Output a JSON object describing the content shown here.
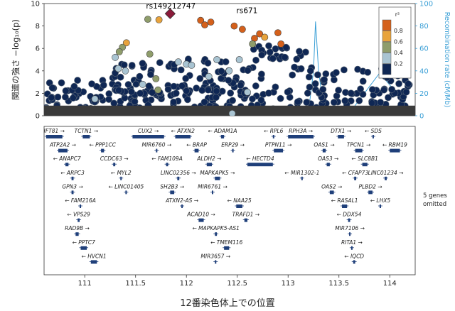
{
  "chart_data": {
    "type": "scatter",
    "ylabel": "関連の強さ −log₁₀(p)",
    "y2label": "Recombination rate (cM/Mb)",
    "xlabel": "12番染色体上での位置",
    "xlim": [
      110.6,
      114.25
    ],
    "ylim": [
      0,
      10
    ],
    "y2lim": [
      0,
      100
    ],
    "xticks": [
      111,
      111.5,
      112,
      112.5,
      113,
      113.5,
      114
    ],
    "yticks": [
      0,
      2,
      4,
      6,
      8,
      10
    ],
    "y2ticks": [
      0,
      20,
      40,
      60,
      80,
      100
    ],
    "lead_snp": {
      "label": "rs149212747",
      "x": 111.84,
      "y": 9.1
    },
    "annotated_snps": [
      {
        "label": "rs671",
        "x": 112.24,
        "y": 8.5
      }
    ],
    "legend": {
      "title": "r²",
      "position": "top-right",
      "bins": [
        {
          "label": "0.8",
          "color": "#d4601b"
        },
        {
          "label": "0.6",
          "color": "#e8a33c"
        },
        {
          "label": "0.4",
          "color": "#8f9d6b"
        },
        {
          "label": "0.2",
          "color": "#a9c4d2"
        },
        {
          "label": "",
          "color": "#0f2754"
        }
      ]
    },
    "highlighted_points": [
      {
        "x": 111.84,
        "y": 9.1,
        "r2": "lead"
      },
      {
        "x": 111.62,
        "y": 8.6,
        "r2": 0.5
      },
      {
        "x": 111.73,
        "y": 8.55,
        "r2": 0.7
      },
      {
        "x": 112.14,
        "y": 8.5,
        "r2": 0.9
      },
      {
        "x": 112.18,
        "y": 8.1,
        "r2": 0.9
      },
      {
        "x": 112.24,
        "y": 8.35,
        "r2": 0.9
      },
      {
        "x": 112.47,
        "y": 8.0,
        "r2": 0.9
      },
      {
        "x": 112.55,
        "y": 7.7,
        "r2": 0.9
      },
      {
        "x": 112.72,
        "y": 7.3,
        "r2": 0.9
      },
      {
        "x": 112.67,
        "y": 6.9,
        "r2": 0.9
      },
      {
        "x": 112.77,
        "y": 7.0,
        "r2": 0.7
      },
      {
        "x": 112.9,
        "y": 7.4,
        "r2": 0.9
      },
      {
        "x": 112.93,
        "y": 6.4,
        "r2": 0.9
      },
      {
        "x": 112.65,
        "y": 6.4,
        "r2": 0.5
      },
      {
        "x": 111.41,
        "y": 6.5,
        "r2": 0.7
      },
      {
        "x": 111.37,
        "y": 6.1,
        "r2": 0.5
      },
      {
        "x": 111.34,
        "y": 5.7,
        "r2": 0.5
      },
      {
        "x": 111.3,
        "y": 5.2,
        "r2": 0.3
      },
      {
        "x": 111.33,
        "y": 4.2,
        "r2": 0.3
      },
      {
        "x": 111.64,
        "y": 5.5,
        "r2": 0.5
      },
      {
        "x": 111.7,
        "y": 3.3,
        "r2": 0.5
      },
      {
        "x": 111.72,
        "y": 2.3,
        "r2": 0.5
      },
      {
        "x": 111.92,
        "y": 4.8,
        "r2": 0.3
      },
      {
        "x": 112.0,
        "y": 4.6,
        "r2": 0.3
      },
      {
        "x": 112.05,
        "y": 4.5,
        "r2": 0.3
      },
      {
        "x": 112.22,
        "y": 3.5,
        "r2": 0.3
      },
      {
        "x": 112.3,
        "y": 5.0,
        "r2": 0.3
      },
      {
        "x": 112.42,
        "y": 4.0,
        "r2": 0.3
      },
      {
        "x": 112.52,
        "y": 5.0,
        "r2": 0.3
      },
      {
        "x": 112.45,
        "y": 0.2,
        "r2": 0.3
      },
      {
        "x": 111.4,
        "y": 4.0,
        "r2": 0.3
      },
      {
        "x": 111.57,
        "y": 2.8,
        "r2": 0.3
      },
      {
        "x": 111.1,
        "y": 1.5,
        "r2": 0.3
      },
      {
        "x": 112.6,
        "y": 2.1,
        "r2": 0.3
      }
    ],
    "background_clusters": [
      {
        "x0": 110.62,
        "x1": 114.25,
        "ylo": 0.0,
        "yhi": 2.0,
        "n": 260
      },
      {
        "x0": 110.62,
        "x1": 111.4,
        "ylo": 1.5,
        "yhi": 3.5,
        "n": 30
      },
      {
        "x0": 111.25,
        "x1": 111.75,
        "ylo": 2.0,
        "yhi": 4.8,
        "n": 40
      },
      {
        "x0": 111.8,
        "x1": 112.6,
        "ylo": 2.0,
        "yhi": 5.1,
        "n": 60
      },
      {
        "x0": 112.6,
        "x1": 113.2,
        "ylo": 2.0,
        "yhi": 6.4,
        "n": 30
      },
      {
        "x0": 113.2,
        "x1": 114.2,
        "ylo": 2.0,
        "yhi": 4.5,
        "n": 50
      },
      {
        "x0": 112.7,
        "x1": 113.0,
        "ylo": 5.0,
        "yhi": 6.6,
        "n": 10
      }
    ],
    "recombination_rate": {
      "x": [
        110.6,
        110.8,
        111.0,
        111.2,
        111.25,
        111.3,
        111.5,
        111.8,
        112.0,
        112.4,
        112.8,
        113.1,
        113.2,
        113.25,
        113.27,
        113.3,
        113.33,
        113.4,
        113.6,
        113.9,
        114.25
      ],
      "y": [
        1,
        2,
        1,
        2,
        8,
        1,
        1,
        2,
        1,
        1,
        2,
        1,
        3,
        40,
        84,
        40,
        20,
        1,
        2,
        38,
        1
      ]
    },
    "genes": [
      {
        "name": "IFT81",
        "start": 110.62,
        "end": 110.78,
        "strand": "+",
        "row": 0
      },
      {
        "name": "TCTN1",
        "start": 110.98,
        "end": 111.05,
        "strand": "+",
        "row": 0
      },
      {
        "name": "CUX2",
        "start": 111.47,
        "end": 111.78,
        "strand": "+",
        "row": 0
      },
      {
        "name": "ATXN2",
        "start": 111.89,
        "end": 112.04,
        "strand": "-",
        "row": 0
      },
      {
        "name": "ADAM1A",
        "start": 112.34,
        "end": 112.37,
        "strand": "-",
        "row": 0
      },
      {
        "name": "RPL6",
        "start": 112.85,
        "end": 112.86,
        "strand": "-",
        "row": 0
      },
      {
        "name": "RPH3A",
        "start": 113.0,
        "end": 113.25,
        "strand": "+",
        "row": 0
      },
      {
        "name": "DTX1",
        "start": 113.49,
        "end": 113.55,
        "strand": "+",
        "row": 0
      },
      {
        "name": "SDS",
        "start": 113.83,
        "end": 113.84,
        "strand": "-",
        "row": 0
      },
      {
        "name": "ATP2A2",
        "start": 110.74,
        "end": 110.83,
        "strand": "+",
        "row": 1
      },
      {
        "name": "PPP1CC",
        "start": 111.16,
        "end": 111.19,
        "strand": "-",
        "row": 1
      },
      {
        "name": "MIR6760",
        "start": 111.7,
        "end": 111.7,
        "strand": "+",
        "row": 1
      },
      {
        "name": "BRAP",
        "start": 112.08,
        "end": 112.12,
        "strand": "-",
        "row": 1
      },
      {
        "name": "ERP29",
        "start": 112.45,
        "end": 112.46,
        "strand": "+",
        "row": 1
      },
      {
        "name": "PTPN11",
        "start": 112.86,
        "end": 112.95,
        "strand": "+",
        "row": 1
      },
      {
        "name": "OAS1",
        "start": 113.34,
        "end": 113.37,
        "strand": "+",
        "row": 1
      },
      {
        "name": "TPCN1",
        "start": 113.66,
        "end": 113.73,
        "strand": "+",
        "row": 1
      },
      {
        "name": "RBM19",
        "start": 114.0,
        "end": 114.1,
        "strand": "-",
        "row": 1
      },
      {
        "name": "ANAPC7",
        "start": 110.81,
        "end": 110.84,
        "strand": "-",
        "row": 2
      },
      {
        "name": "CCDC63",
        "start": 111.28,
        "end": 111.3,
        "strand": "+",
        "row": 2
      },
      {
        "name": "FAM109A",
        "start": 111.8,
        "end": 111.82,
        "strand": "-",
        "row": 2
      },
      {
        "name": "ALDH2",
        "start": 112.2,
        "end": 112.25,
        "strand": "+",
        "row": 2
      },
      {
        "name": "HECTD4",
        "start": 112.6,
        "end": 112.85,
        "strand": "-",
        "row": 2
      },
      {
        "name": "OAS3",
        "start": 113.38,
        "end": 113.41,
        "strand": "+",
        "row": 2
      },
      {
        "name": "SLC8B1",
        "start": 113.73,
        "end": 113.78,
        "strand": "-",
        "row": 2
      },
      {
        "name": "ARPC3",
        "start": 110.87,
        "end": 110.89,
        "strand": "-",
        "row": 3
      },
      {
        "name": "MYL2",
        "start": 111.35,
        "end": 111.36,
        "strand": "-",
        "row": 3
      },
      {
        "name": "LINC02356",
        "start": 111.91,
        "end": 111.93,
        "strand": "+",
        "row": 3
      },
      {
        "name": "MAPKAPK5",
        "start": 112.28,
        "end": 112.33,
        "strand": "+",
        "row": 3
      },
      {
        "name": "MIR1302-1",
        "start": 113.13,
        "end": 113.13,
        "strand": "-",
        "row": 3
      },
      {
        "name": "CFAP73",
        "start": 113.65,
        "end": 113.67,
        "strand": "-",
        "row": 3
      },
      {
        "name": "LINC01234",
        "start": 113.95,
        "end": 113.97,
        "strand": "+",
        "row": 3
      },
      {
        "name": "GPN3",
        "start": 110.87,
        "end": 110.89,
        "strand": "+",
        "row": 4
      },
      {
        "name": "LINC01405",
        "start": 111.4,
        "end": 111.41,
        "strand": "-",
        "row": 4
      },
      {
        "name": "SH2B3",
        "start": 111.84,
        "end": 111.88,
        "strand": "+",
        "row": 4
      },
      {
        "name": "MIR6761",
        "start": 112.25,
        "end": 112.25,
        "strand": "+",
        "row": 4
      },
      {
        "name": "OAS2",
        "start": 113.41,
        "end": 113.45,
        "strand": "+",
        "row": 4
      },
      {
        "name": "PLBD2",
        "start": 113.79,
        "end": 113.83,
        "strand": "+",
        "row": 4
      },
      {
        "name": "FAM216A",
        "start": 110.95,
        "end": 110.96,
        "strand": "-",
        "row": 5
      },
      {
        "name": "ATXN2-AS",
        "start": 111.95,
        "end": 111.96,
        "strand": "+",
        "row": 5
      },
      {
        "name": "NAA25",
        "start": 112.49,
        "end": 112.55,
        "strand": "-",
        "row": 5
      },
      {
        "name": "RASAL1",
        "start": 113.53,
        "end": 113.58,
        "strand": "-",
        "row": 5
      },
      {
        "name": "LHX5",
        "start": 113.9,
        "end": 113.91,
        "strand": "-",
        "row": 5
      },
      {
        "name": "VPS29",
        "start": 110.93,
        "end": 110.95,
        "strand": "-",
        "row": 6
      },
      {
        "name": "ACAD10",
        "start": 112.12,
        "end": 112.17,
        "strand": "+",
        "row": 6
      },
      {
        "name": "TRAFD1",
        "start": 112.57,
        "end": 112.6,
        "strand": "+",
        "row": 6
      },
      {
        "name": "DDX54",
        "start": 113.59,
        "end": 113.61,
        "strand": "-",
        "row": 6
      },
      {
        "name": "RAD9B",
        "start": 110.91,
        "end": 110.94,
        "strand": "+",
        "row": 7
      },
      {
        "name": "MAPKAPK5-AS1",
        "start": 112.28,
        "end": 112.3,
        "strand": "-",
        "row": 7
      },
      {
        "name": "MIR7106",
        "start": 113.6,
        "end": 113.6,
        "strand": "+",
        "row": 7
      },
      {
        "name": "PPTC7",
        "start": 110.96,
        "end": 111.02,
        "strand": "-",
        "row": 8
      },
      {
        "name": "TMEM116",
        "start": 112.37,
        "end": 112.42,
        "strand": "-",
        "row": 8
      },
      {
        "name": "RITA1",
        "start": 113.62,
        "end": 113.63,
        "strand": "+",
        "row": 8
      },
      {
        "name": "HVCN1",
        "start": 111.06,
        "end": 111.12,
        "strand": "-",
        "row": 9
      },
      {
        "name": "MIR3657",
        "start": 112.28,
        "end": 112.28,
        "strand": "+",
        "row": 9
      },
      {
        "name": "IQCD",
        "start": 113.64,
        "end": 113.66,
        "strand": "-",
        "row": 9
      }
    ],
    "omitted_note": "5 genes\nomitted"
  }
}
